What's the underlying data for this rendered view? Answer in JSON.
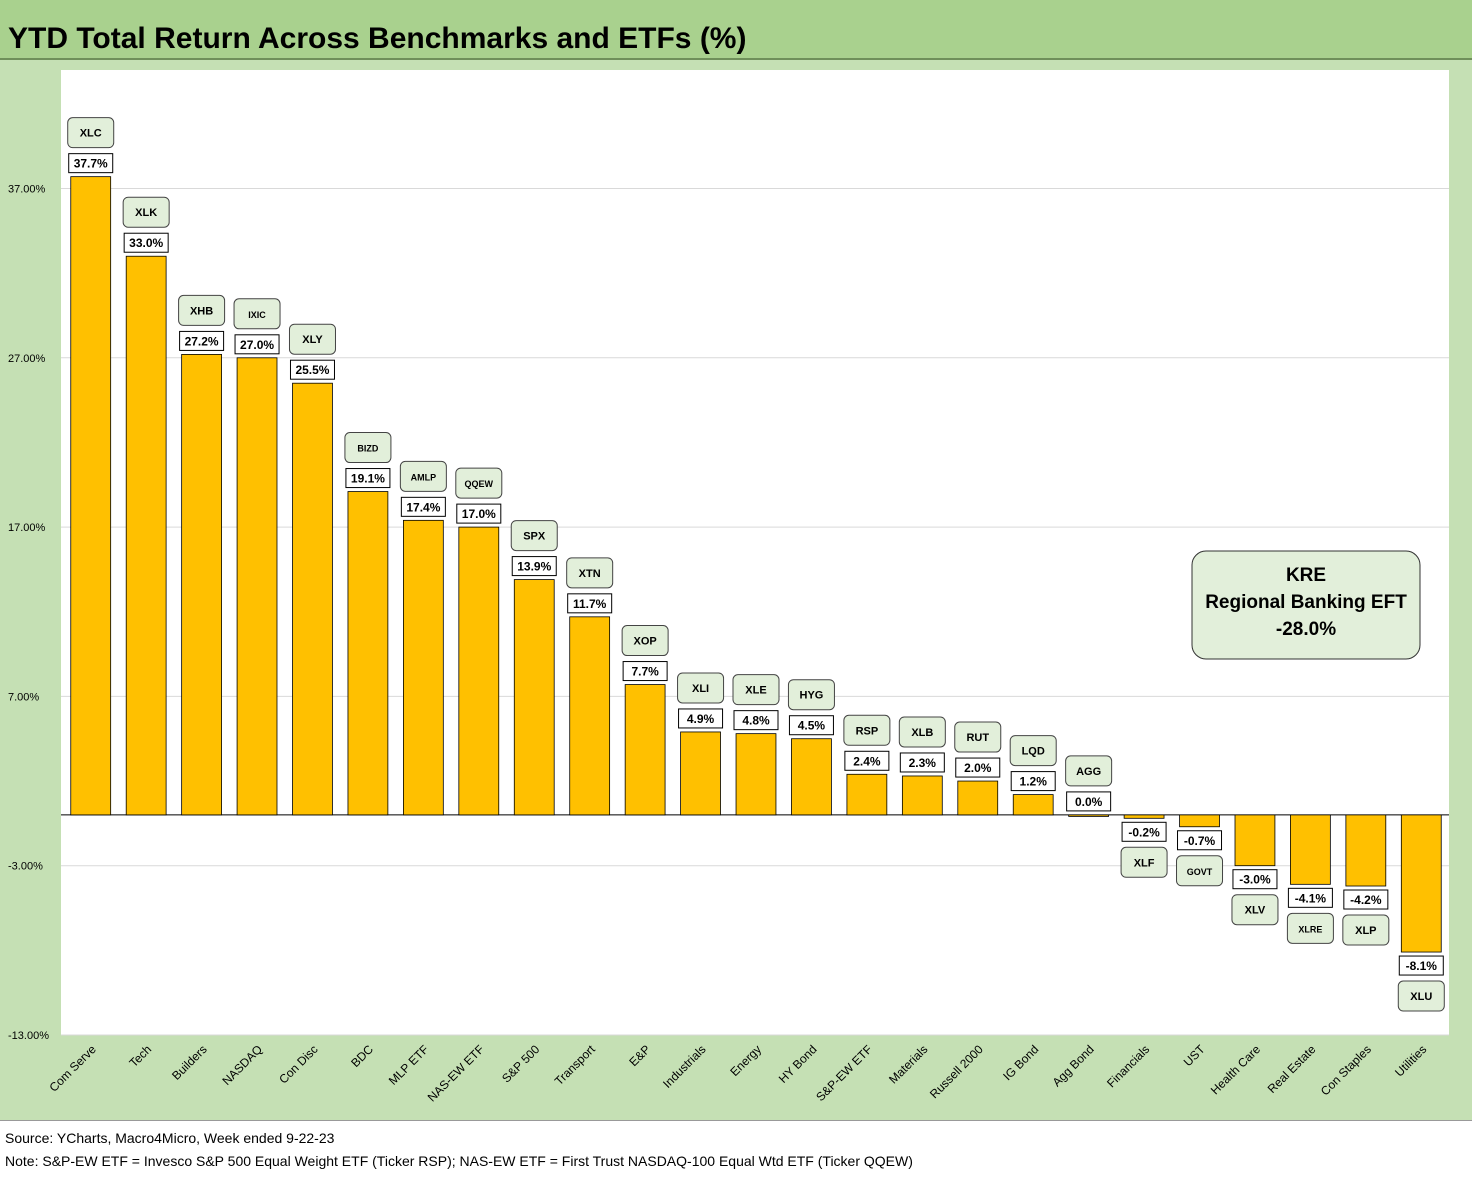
{
  "header": {
    "title": "YTD Total Return Across Benchmarks and ETFs (%)"
  },
  "footer": {
    "source": "Source: YCharts, Macro4Micro, Week ended 9-22-23",
    "note": "Note: S&P-EW ETF = Invesco S&P 500 Equal Weight ETF (Ticker RSP); NAS-EW ETF = First Trust NASDAQ-100 Equal Wtd ETF (Ticker QQEW)"
  },
  "callout": {
    "ticker": "KRE",
    "name": "Regional Banking EFT",
    "value": "-28.0%"
  },
  "chart_data": {
    "type": "bar",
    "title": "YTD Total Return Across Benchmarks and ETFs (%)",
    "xlabel": "",
    "ylabel": "",
    "ylim": [
      -13,
      44
    ],
    "y_ticks": [
      37,
      27,
      17,
      7,
      -3,
      -13
    ],
    "y_tick_labels": [
      "37.00%",
      "27.00%",
      "17.00%",
      "7.00%",
      "-3.00%",
      "-13.00%"
    ],
    "grid": true,
    "bar_color": "#ffc000",
    "categories": [
      "Com Serve",
      "Tech",
      "Builders",
      "NASDAQ",
      "Con Disc",
      "BDC",
      "MLP ETF",
      "NAS-EW ETF",
      "S&P 500",
      "Transport",
      "E&P",
      "Industrials",
      "Energy",
      "HY Bond",
      "S&P-EW ETF",
      "Materials",
      "Russell 2000",
      "IG Bond",
      "Agg Bond",
      "Financials",
      "UST",
      "Health Care",
      "Real Estate",
      "Con Staples",
      "Utilities"
    ],
    "tickers": [
      "XLC",
      "XLK",
      "XHB",
      "IXIC",
      "XLY",
      "BIZD",
      "AMLP",
      "QQEW",
      "SPX",
      "XTN",
      "XOP",
      "XLI",
      "XLE",
      "HYG",
      "RSP",
      "XLB",
      "RUT",
      "LQD",
      "AGG",
      "XLF",
      "GOVT",
      "XLV",
      "XLRE",
      "XLP",
      "XLU"
    ],
    "values": [
      37.7,
      33.0,
      27.2,
      27.0,
      25.5,
      19.1,
      17.4,
      17.0,
      13.9,
      11.7,
      7.7,
      4.9,
      4.8,
      4.5,
      2.4,
      2.3,
      2.0,
      1.2,
      0.0,
      -0.2,
      -0.7,
      -3.0,
      -4.1,
      -4.2,
      -8.1
    ],
    "value_labels": [
      "37.7%",
      "33.0%",
      "27.2%",
      "27.0%",
      "25.5%",
      "19.1%",
      "17.4%",
      "17.0%",
      "13.9%",
      "11.7%",
      "7.7%",
      "4.9%",
      "4.8%",
      "4.5%",
      "2.4%",
      "2.3%",
      "2.0%",
      "1.2%",
      "0.0%",
      "-0.2%",
      "-0.7%",
      "-3.0%",
      "-4.1%",
      "-4.2%",
      "-8.1%"
    ]
  }
}
